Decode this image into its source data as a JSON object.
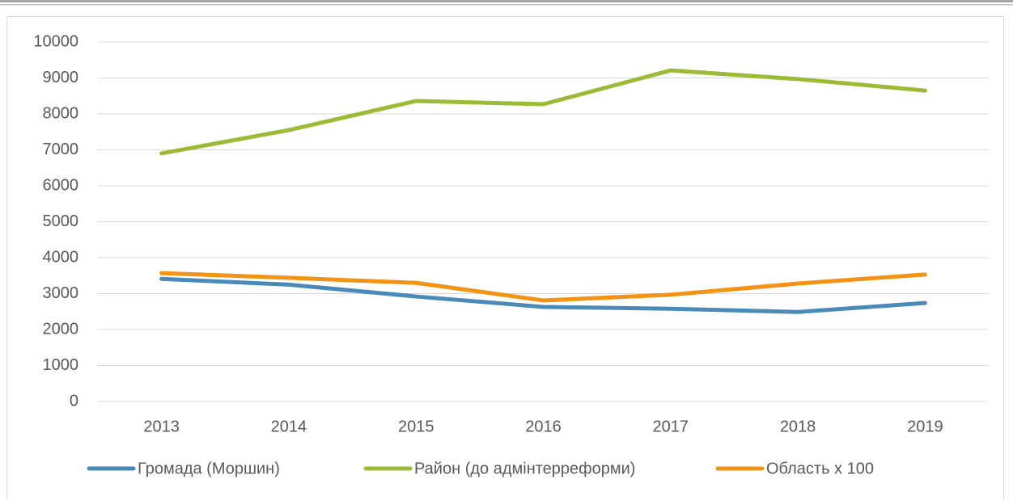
{
  "chart_data": {
    "type": "line",
    "categories": [
      "2013",
      "2014",
      "2015",
      "2016",
      "2017",
      "2018",
      "2019"
    ],
    "series": [
      {
        "name": "Громада (Моршин)",
        "color": "#4a8ab9",
        "values": [
          3410,
          3250,
          2920,
          2630,
          2580,
          2490,
          2740
        ]
      },
      {
        "name": "Район (до адмінтерреформи)",
        "color": "#9bbb34",
        "values": [
          6900,
          7550,
          8360,
          8270,
          9210,
          8970,
          8650
        ]
      },
      {
        "name": "Область х 100",
        "color": "#f39313",
        "values": [
          3570,
          3440,
          3300,
          2810,
          2970,
          3280,
          3530
        ]
      }
    ],
    "ylim": [
      0,
      10000
    ],
    "yticks": [
      0,
      1000,
      2000,
      3000,
      4000,
      5000,
      6000,
      7000,
      8000,
      9000,
      10000
    ],
    "grid": true,
    "legend": "bottom"
  }
}
